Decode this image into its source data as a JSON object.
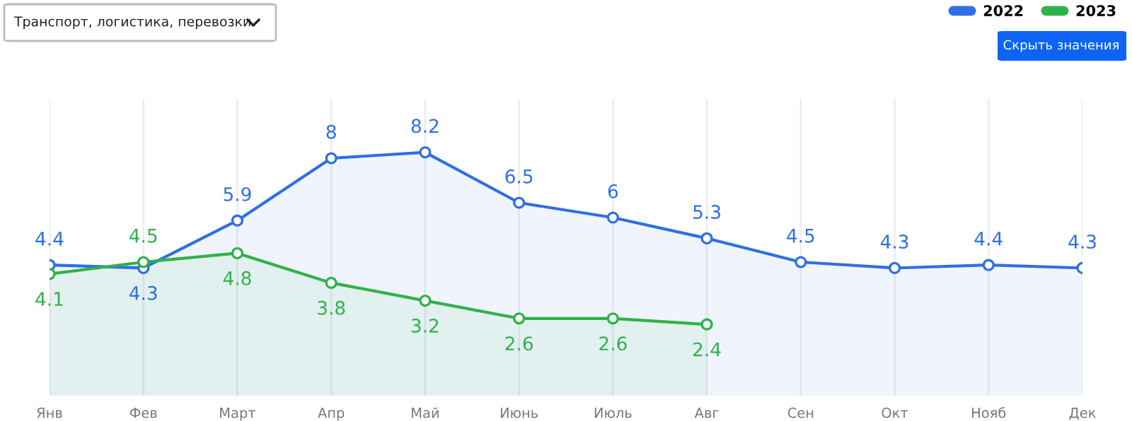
{
  "chart_data": {
    "type": "area",
    "categories": [
      "Янв",
      "Фев",
      "Март",
      "Апр",
      "Май",
      "Июнь",
      "Июль",
      "Авг",
      "Сен",
      "Окт",
      "Нояб",
      "Дек"
    ],
    "series": [
      {
        "name": "2022",
        "color": "#2f6fe4",
        "values": [
          4.4,
          4.3,
          5.9,
          8,
          8.2,
          6.5,
          6,
          5.3,
          4.5,
          4.3,
          4.4,
          4.3
        ]
      },
      {
        "name": "2023",
        "color": "#2fb24a",
        "values": [
          4.1,
          4.5,
          4.8,
          3.8,
          3.2,
          2.6,
          2.6,
          2.4,
          null,
          null,
          null,
          null
        ]
      }
    ],
    "ylim": [
      0,
      10
    ],
    "tick_labels": "x",
    "grid": "x",
    "legend": "top right",
    "marker": "circle",
    "line_style": "solid",
    "data_labels": true,
    "annotations": [
      "Транспорт, логистика, перевозки",
      "Скрыть значения"
    ]
  }
}
